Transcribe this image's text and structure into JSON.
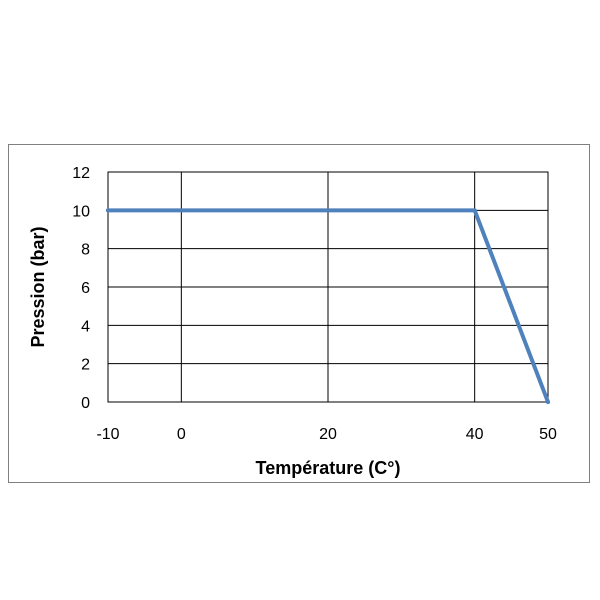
{
  "chart_data": {
    "type": "line",
    "title": "",
    "xlabel": "Température (C°)",
    "ylabel": "Pression (bar)",
    "xlim": [
      -10,
      50
    ],
    "ylim": [
      0,
      12
    ],
    "x_ticks": [
      -10,
      0,
      20,
      40,
      50
    ],
    "y_ticks": [
      0,
      2,
      4,
      6,
      8,
      10,
      12
    ],
    "grid": true,
    "legend": "none",
    "series": [
      {
        "x": [
          -10,
          40,
          50
        ],
        "y": [
          10,
          10,
          0
        ],
        "color": "#4f81bd"
      }
    ]
  }
}
